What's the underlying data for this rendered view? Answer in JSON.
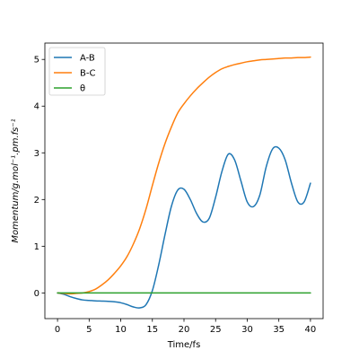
{
  "chart_data": {
    "type": "line",
    "xlabel": "Time/fs",
    "ylabel": "Momentum/g.mol⁻¹.pm.fs⁻¹",
    "xlim": [
      -2,
      42
    ],
    "ylim": [
      -0.55,
      5.35
    ],
    "xticks": [
      0,
      5,
      10,
      15,
      20,
      25,
      30,
      35,
      40
    ],
    "yticks": [
      0,
      1,
      2,
      3,
      4,
      5
    ],
    "grid": false,
    "legend_position": "top-left",
    "series": [
      {
        "name": "A-B",
        "color": "#1f77b4",
        "x": [
          0,
          1,
          2,
          3,
          4,
          5,
          6,
          7,
          8,
          9,
          10,
          11,
          12,
          13,
          14,
          15,
          16,
          17,
          18,
          19,
          20,
          21,
          22,
          23,
          24,
          25,
          26,
          27,
          28,
          29,
          30,
          31,
          32,
          33,
          34,
          35,
          36,
          37,
          38,
          39,
          40
        ],
        "y": [
          0.0,
          -0.03,
          -0.08,
          -0.12,
          -0.15,
          -0.16,
          -0.17,
          -0.175,
          -0.18,
          -0.19,
          -0.21,
          -0.25,
          -0.3,
          -0.32,
          -0.25,
          0.05,
          0.6,
          1.25,
          1.85,
          2.2,
          2.22,
          2.0,
          1.7,
          1.52,
          1.6,
          2.05,
          2.6,
          2.97,
          2.85,
          2.4,
          1.95,
          1.85,
          2.1,
          2.7,
          3.08,
          3.1,
          2.85,
          2.35,
          1.95,
          1.95,
          2.35
        ]
      },
      {
        "name": "B-C",
        "color": "#ff7f0e",
        "x": [
          0,
          1,
          2,
          3,
          4,
          5,
          6,
          7,
          8,
          9,
          10,
          11,
          12,
          13,
          14,
          15,
          16,
          17,
          18,
          19,
          20,
          21,
          22,
          23,
          24,
          25,
          26,
          27,
          28,
          29,
          30,
          31,
          32,
          33,
          34,
          35,
          36,
          37,
          38,
          39,
          40
        ],
        "y": [
          0.0,
          -0.01,
          -0.02,
          -0.01,
          0.0,
          0.03,
          0.08,
          0.17,
          0.28,
          0.42,
          0.58,
          0.78,
          1.05,
          1.38,
          1.8,
          2.3,
          2.78,
          3.2,
          3.55,
          3.85,
          4.05,
          4.22,
          4.37,
          4.5,
          4.62,
          4.72,
          4.8,
          4.85,
          4.89,
          4.92,
          4.95,
          4.97,
          4.99,
          5.0,
          5.01,
          5.02,
          5.03,
          5.03,
          5.04,
          5.04,
          5.05
        ]
      },
      {
        "name": "θ",
        "color": "#2ca02c",
        "x": [
          0,
          40
        ],
        "y": [
          0.0,
          0.0
        ]
      }
    ]
  }
}
